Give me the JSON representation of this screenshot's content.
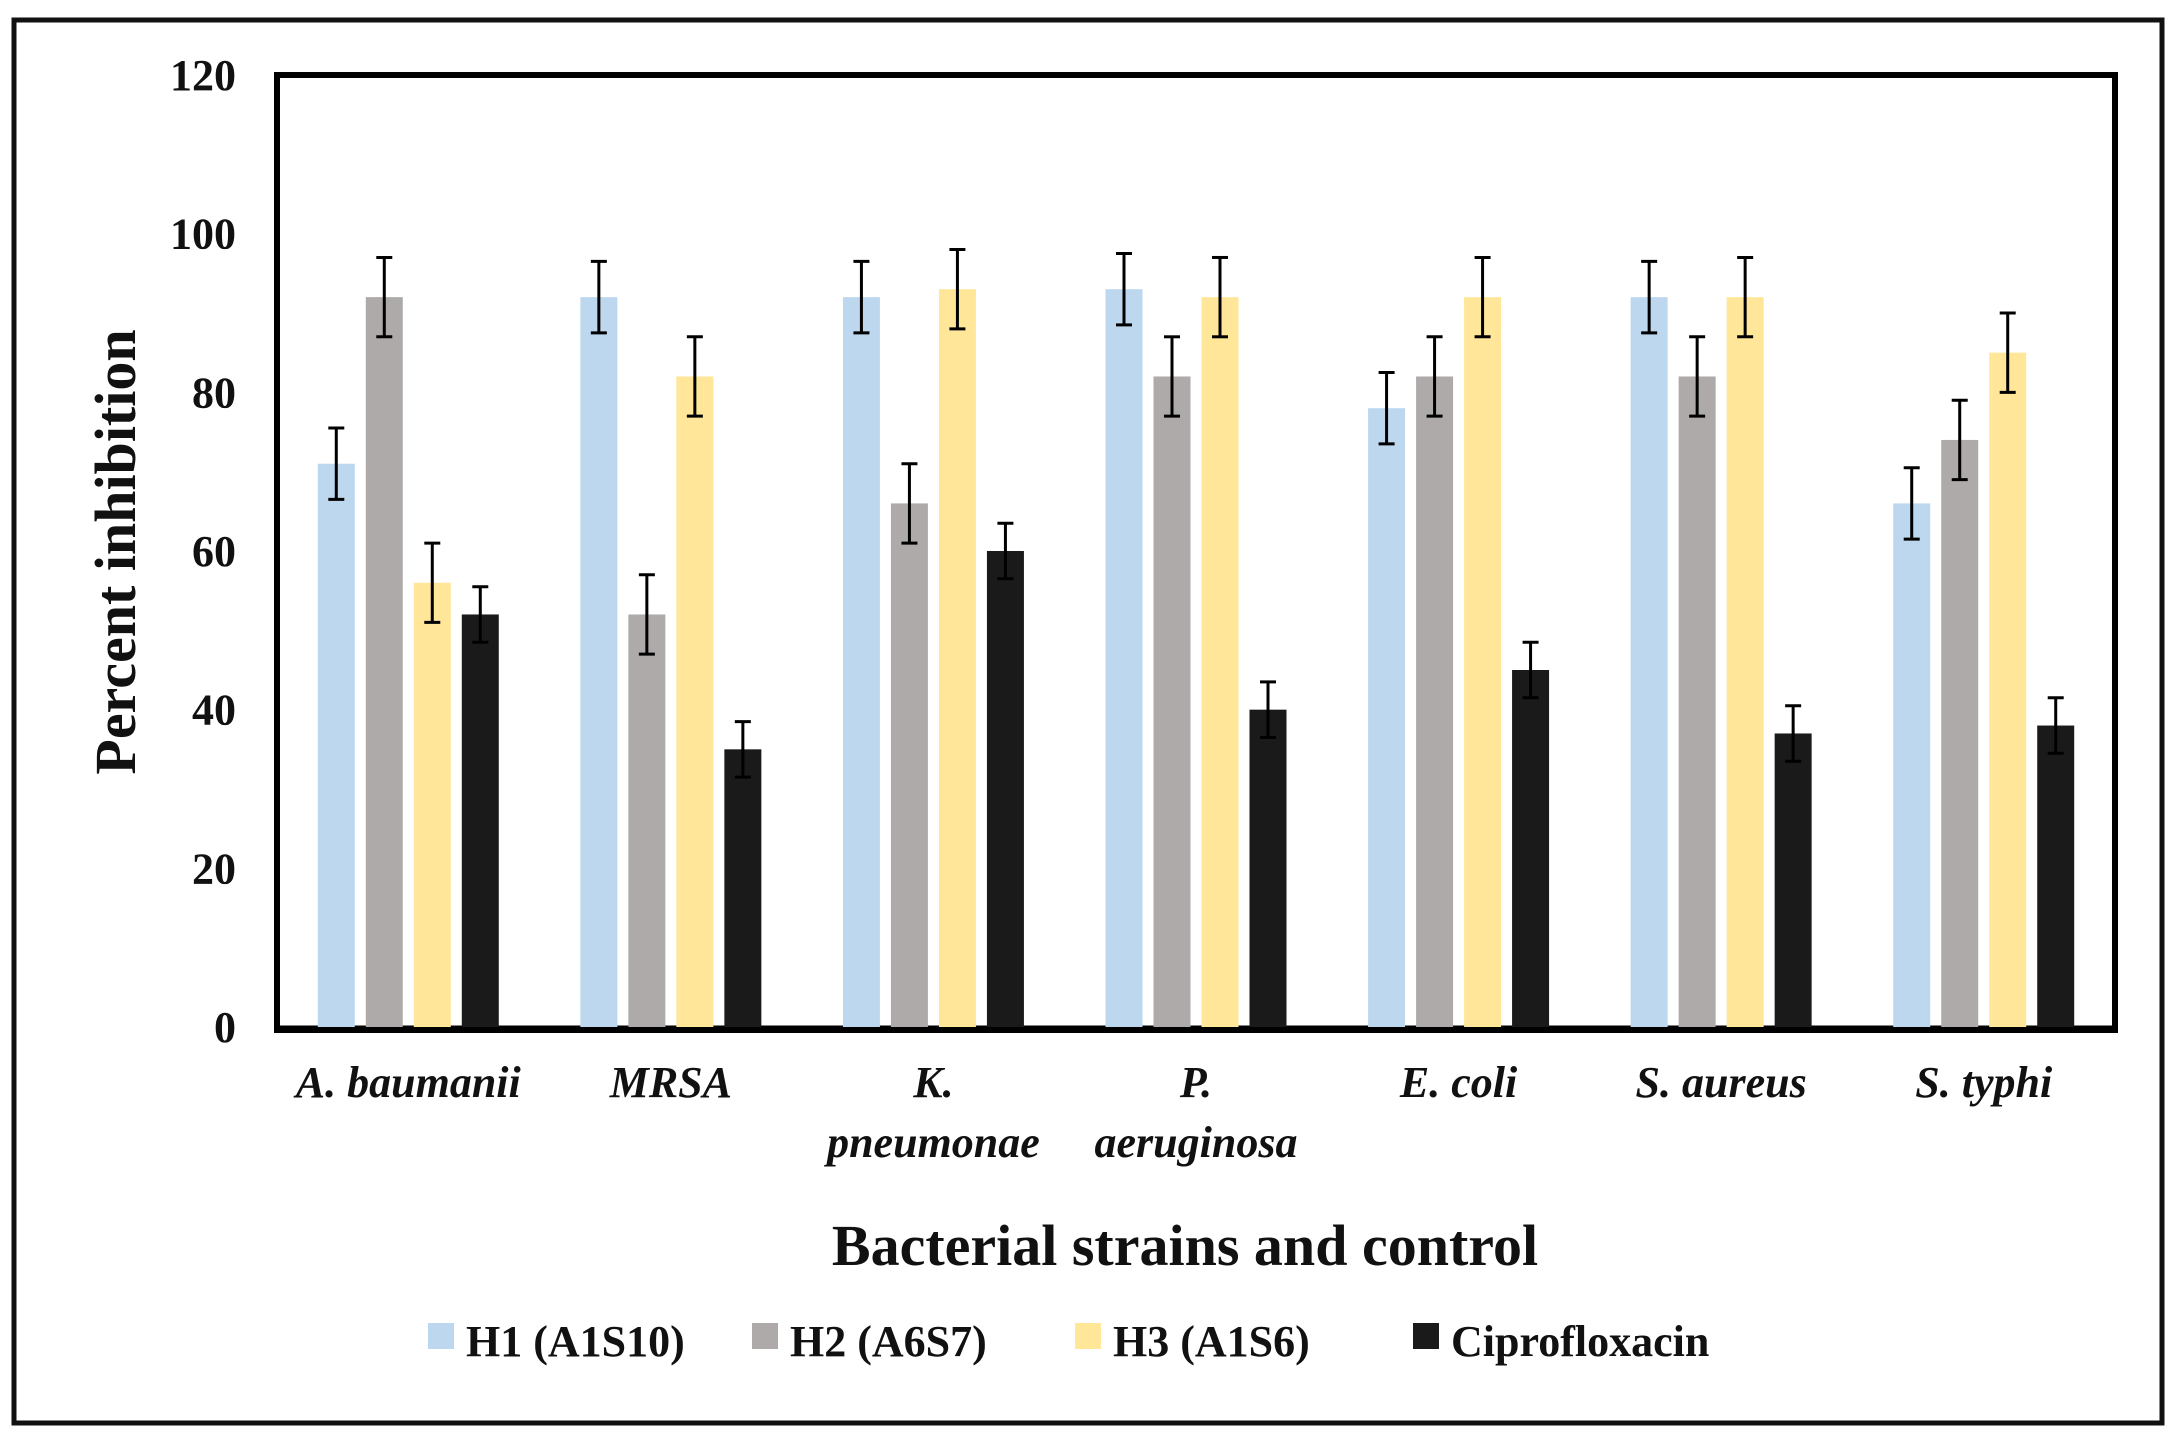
{
  "chart_data": {
    "type": "bar",
    "title": "",
    "xlabel": "Bacterial strains and control",
    "ylabel": "Percent inhibition",
    "ylim": [
      0,
      120
    ],
    "yticks": [
      0,
      20,
      40,
      60,
      80,
      100,
      120
    ],
    "categories": [
      [
        "A. baumanii"
      ],
      [
        "MRSA"
      ],
      [
        "K.",
        "pneumonae"
      ],
      [
        "P.",
        "aeruginosa"
      ],
      [
        "E. coli"
      ],
      [
        "S. aureus"
      ],
      [
        "S. typhi"
      ]
    ],
    "series": [
      {
        "name": "H1 (A1S10)",
        "color": "#bdd7ee",
        "values": [
          71,
          92,
          92,
          93,
          78,
          92,
          66
        ],
        "errors": [
          4.5,
          4.5,
          4.5,
          4.5,
          4.5,
          4.5,
          4.5
        ]
      },
      {
        "name": "H2 (A6S7)",
        "color": "#aeaaaa",
        "values": [
          92,
          52,
          66,
          82,
          82,
          82,
          74
        ],
        "errors": [
          5,
          5,
          5,
          5,
          5,
          5,
          5
        ]
      },
      {
        "name": "H3 (A1S6)",
        "color": "#ffe699",
        "values": [
          56,
          82,
          93,
          92,
          92,
          92,
          85
        ],
        "errors": [
          5,
          5,
          5,
          5,
          5,
          5,
          5
        ]
      },
      {
        "name": "Ciprofloxacin",
        "color": "#1a1a1a",
        "values": [
          52,
          35,
          60,
          40,
          45,
          37,
          38
        ],
        "errors": [
          3.5,
          3.5,
          3.5,
          3.5,
          3.5,
          3.5,
          3.5
        ]
      }
    ],
    "legend_position": "bottom"
  }
}
